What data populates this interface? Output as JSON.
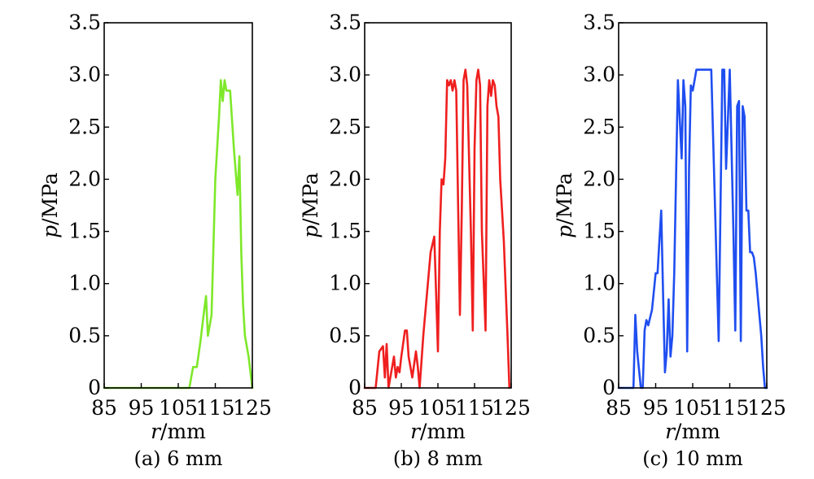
{
  "chart_data": [
    {
      "type": "line",
      "caption": "(a) 6 mm",
      "xlabel_var": "r",
      "xlabel_unit": "/mm",
      "ylabel_var": "p",
      "ylabel_unit": "/MPa",
      "xlim": [
        85,
        125
      ],
      "ylim": [
        0,
        3.5
      ],
      "xticks": [
        "85",
        "95",
        "105",
        "115",
        "125"
      ],
      "yticks": [
        "0",
        "0.5",
        "1.0",
        "1.5",
        "2.0",
        "2.5",
        "3.0",
        "3.5"
      ],
      "color": "#7ee82a",
      "x": [
        85,
        108,
        109,
        110,
        111,
        112,
        112.5,
        113,
        114,
        115,
        116,
        116.5,
        117,
        117.5,
        118,
        119,
        120,
        121,
        121.5,
        122,
        122.5,
        123,
        124,
        125
      ],
      "y": [
        0,
        0,
        0.2,
        0.2,
        0.45,
        0.75,
        0.88,
        0.5,
        0.7,
        2.0,
        2.6,
        2.95,
        2.75,
        2.95,
        2.85,
        2.85,
        2.3,
        1.85,
        2.22,
        1.3,
        0.8,
        0.5,
        0.3,
        0
      ]
    },
    {
      "type": "line",
      "caption": "(b) 8 mm",
      "xlabel_var": "r",
      "xlabel_unit": "/mm",
      "ylabel_var": "p",
      "ylabel_unit": "/MPa",
      "xlim": [
        85,
        125
      ],
      "ylim": [
        0,
        3.5
      ],
      "xticks": [
        "85",
        "95",
        "105",
        "115",
        "125"
      ],
      "yticks": [
        "0",
        "0.5",
        "1.0",
        "1.5",
        "2.0",
        "2.5",
        "3.0",
        "3.5"
      ],
      "color": "#ef1f1f",
      "x": [
        85,
        88,
        89,
        90,
        90.5,
        91,
        91.5,
        92,
        93,
        93.5,
        94,
        94.5,
        95,
        96,
        96.5,
        97,
        98,
        99,
        99.5,
        100,
        101,
        102,
        103,
        104,
        104.5,
        105,
        105.5,
        106,
        106.5,
        107,
        107.5,
        108,
        108.5,
        109,
        109.5,
        110,
        111,
        111.5,
        112,
        112.5,
        113,
        114,
        114.5,
        115,
        115.5,
        116,
        116.5,
        117,
        118,
        118.5,
        119,
        119.5,
        120,
        120.5,
        121,
        121.5,
        122,
        123,
        124,
        124.5
      ],
      "y": [
        0,
        0,
        0.35,
        0.4,
        0.1,
        0.42,
        0.0,
        0.1,
        0.3,
        0.1,
        0.2,
        0.15,
        0.3,
        0.55,
        0.55,
        0.3,
        0.1,
        0.35,
        0.2,
        0.0,
        0.5,
        0.9,
        1.3,
        1.45,
        0.9,
        0.35,
        1.5,
        2.0,
        1.95,
        2.2,
        2.95,
        2.9,
        2.95,
        2.85,
        2.95,
        2.85,
        0.7,
        1.7,
        2.95,
        3.05,
        2.9,
        1.5,
        0.55,
        2.3,
        2.95,
        3.05,
        2.9,
        1.5,
        0.55,
        2.7,
        2.95,
        2.8,
        2.95,
        2.9,
        2.7,
        2.6,
        2.0,
        1.4,
        0.5,
        0
      ]
    },
    {
      "type": "line",
      "caption": "(c) 10 mm",
      "xlabel_var": "r",
      "xlabel_unit": "/mm",
      "ylabel_var": "p",
      "ylabel_unit": "/MPa",
      "xlim": [
        85,
        125
      ],
      "ylim": [
        0,
        3.5
      ],
      "xticks": [
        "85",
        "95",
        "105",
        "115",
        "125"
      ],
      "yticks": [
        "0",
        "0.5",
        "1.0",
        "1.5",
        "2.0",
        "2.5",
        "3.0",
        "3.5"
      ],
      "color": "#1f4ef0",
      "x": [
        85,
        89,
        89.5,
        90,
        91,
        91.5,
        92,
        92.5,
        93,
        94,
        95,
        95.5,
        96,
        96.5,
        97,
        97.5,
        98,
        98.5,
        99,
        99.5,
        100,
        101,
        102,
        102.5,
        103,
        103.5,
        104,
        104.5,
        105,
        105.5,
        106,
        106.5,
        107,
        108,
        110,
        112,
        113,
        113.5,
        114,
        115,
        116,
        116.5,
        117,
        117.5,
        118,
        118.5,
        119,
        119.5,
        120,
        120.5,
        121,
        121.5,
        122,
        123,
        123.5,
        124,
        124.5,
        125
      ],
      "y": [
        0,
        0,
        0.7,
        0.35,
        0.0,
        0.0,
        0.55,
        0.65,
        0.6,
        0.75,
        1.1,
        1.1,
        1.4,
        1.7,
        0.9,
        0.15,
        0.35,
        0.85,
        0.3,
        0.5,
        1.1,
        2.95,
        2.2,
        2.95,
        2.7,
        0.35,
        2.1,
        2.9,
        2.85,
        2.95,
        3.05,
        3.05,
        3.05,
        3.05,
        3.05,
        0.45,
        3.05,
        3.05,
        2.1,
        3.05,
        1.5,
        0.55,
        2.7,
        2.75,
        0.45,
        2.7,
        2.6,
        1.7,
        1.7,
        1.3,
        1.3,
        1.25,
        1.1,
        0.7,
        0.5,
        0.2,
        0.0,
        0
      ]
    }
  ]
}
